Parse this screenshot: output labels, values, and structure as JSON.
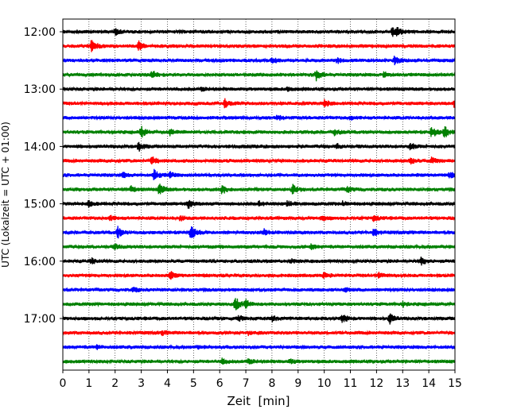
{
  "chart_data": {
    "type": "line",
    "title": "",
    "xlabel": "Zeit  [min]",
    "ylabel": "UTC (Lokalzeit = UTC + 01:00)",
    "xlim": [
      0,
      15
    ],
    "x_ticks": [
      "0",
      "1",
      "2",
      "3",
      "4",
      "5",
      "6",
      "7",
      "8",
      "9",
      "10",
      "11",
      "12",
      "13",
      "14",
      "15"
    ],
    "y_tick_labels": [
      "12:00",
      "13:00",
      "14:00",
      "15:00",
      "16:00",
      "17:00"
    ],
    "grid": "vertical dotted at each minute",
    "colors": [
      "#000000",
      "#ff0000",
      "#0000ff",
      "#008000"
    ],
    "series": [
      {
        "start": "12:00",
        "color": "#000000",
        "events": [
          [
            2.0,
            0.5
          ],
          [
            12.6,
            0.8
          ],
          [
            12.8,
            0.6
          ]
        ]
      },
      {
        "start": "12:15",
        "color": "#ff0000",
        "events": [
          [
            1.1,
            1.2
          ],
          [
            2.9,
            0.8
          ]
        ]
      },
      {
        "start": "12:30",
        "color": "#0000ff",
        "events": [
          [
            8.0,
            0.5
          ],
          [
            12.7,
            0.8
          ],
          [
            10.5,
            0.4
          ]
        ]
      },
      {
        "start": "12:45",
        "color": "#008000",
        "events": [
          [
            3.4,
            0.8
          ],
          [
            9.7,
            1.0
          ],
          [
            12.3,
            0.6
          ]
        ]
      },
      {
        "start": "13:00",
        "color": "#000000",
        "events": [
          [
            5.3,
            0.4
          ],
          [
            8.6,
            0.3
          ]
        ]
      },
      {
        "start": "13:15",
        "color": "#ff0000",
        "events": [
          [
            6.2,
            0.8
          ],
          [
            10.0,
            0.7
          ],
          [
            15.0,
            1.0
          ]
        ]
      },
      {
        "start": "13:30",
        "color": "#0000ff",
        "events": [
          [
            8.2,
            0.4
          ],
          [
            11.0,
            0.3
          ]
        ]
      },
      {
        "start": "13:45",
        "color": "#008000",
        "events": [
          [
            3.0,
            1.0
          ],
          [
            4.1,
            0.6
          ],
          [
            10.4,
            0.6
          ],
          [
            14.1,
            1.2
          ],
          [
            14.6,
            1.0
          ]
        ]
      },
      {
        "start": "14:00",
        "color": "#000000",
        "events": [
          [
            2.9,
            0.8
          ],
          [
            13.3,
            0.6
          ],
          [
            10.5,
            0.4
          ]
        ]
      },
      {
        "start": "14:15",
        "color": "#ff0000",
        "events": [
          [
            3.4,
            0.7
          ],
          [
            13.3,
            0.6
          ],
          [
            14.1,
            0.6
          ]
        ]
      },
      {
        "start": "14:30",
        "color": "#0000ff",
        "events": [
          [
            2.3,
            0.4
          ],
          [
            3.5,
            1.0
          ],
          [
            4.1,
            0.5
          ],
          [
            14.8,
            0.5
          ]
        ]
      },
      {
        "start": "14:45",
        "color": "#008000",
        "events": [
          [
            2.6,
            0.5
          ],
          [
            3.7,
            1.1
          ],
          [
            6.1,
            0.8
          ],
          [
            8.8,
            0.8
          ],
          [
            10.9,
            0.5
          ]
        ]
      },
      {
        "start": "15:00",
        "color": "#000000",
        "events": [
          [
            1.0,
            0.6
          ],
          [
            4.8,
            0.8
          ],
          [
            7.5,
            0.5
          ],
          [
            8.6,
            0.5
          ],
          [
            10.7,
            0.4
          ]
        ]
      },
      {
        "start": "15:15",
        "color": "#ff0000",
        "events": [
          [
            1.8,
            0.5
          ],
          [
            4.5,
            0.4
          ],
          [
            9.9,
            0.5
          ],
          [
            11.9,
            0.5
          ]
        ]
      },
      {
        "start": "15:30",
        "color": "#0000ff",
        "events": [
          [
            2.1,
            1.0
          ],
          [
            4.9,
            1.3
          ],
          [
            7.7,
            0.5
          ],
          [
            11.9,
            0.6
          ]
        ]
      },
      {
        "start": "15:45",
        "color": "#008000",
        "events": [
          [
            2.0,
            0.4
          ],
          [
            9.5,
            0.4
          ]
        ]
      },
      {
        "start": "16:00",
        "color": "#000000",
        "events": [
          [
            1.1,
            0.5
          ],
          [
            8.7,
            0.4
          ],
          [
            13.7,
            0.7
          ]
        ]
      },
      {
        "start": "16:15",
        "color": "#ff0000",
        "events": [
          [
            4.1,
            0.7
          ],
          [
            10.0,
            0.5
          ],
          [
            12.1,
            0.5
          ]
        ]
      },
      {
        "start": "16:30",
        "color": "#0000ff",
        "events": [
          [
            2.7,
            0.4
          ],
          [
            10.8,
            0.3
          ]
        ]
      },
      {
        "start": "16:45",
        "color": "#008000",
        "events": [
          [
            6.6,
            1.3
          ],
          [
            7.0,
            0.8
          ],
          [
            13.0,
            0.4
          ]
        ]
      },
      {
        "start": "17:00",
        "color": "#000000",
        "events": [
          [
            6.7,
            0.6
          ],
          [
            8.0,
            0.5
          ],
          [
            10.7,
            0.7
          ],
          [
            12.5,
            0.9
          ]
        ]
      },
      {
        "start": "17:15",
        "color": "#ff0000",
        "events": [
          [
            3.8,
            0.3
          ],
          [
            7.1,
            0.3
          ]
        ]
      },
      {
        "start": "17:30",
        "color": "#0000ff",
        "events": [
          [
            1.3,
            0.3
          ],
          [
            5.2,
            0.3
          ]
        ]
      },
      {
        "start": "17:45",
        "color": "#008000",
        "events": [
          [
            6.1,
            0.5
          ],
          [
            7.1,
            0.6
          ],
          [
            8.7,
            0.4
          ]
        ]
      }
    ]
  }
}
